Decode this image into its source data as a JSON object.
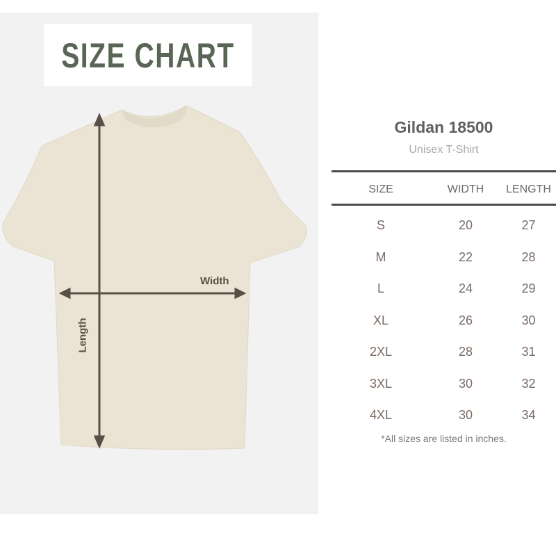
{
  "title": "SIZE CHART",
  "diagram": {
    "width_label": "Width",
    "length_label": "Length",
    "shirt_color": "#ebe4d4",
    "arrow_color": "#5a4e46"
  },
  "product": {
    "name": "Gildan 18500",
    "type": "Unisex T-Shirt"
  },
  "table": {
    "headers": [
      "SIZE",
      "WIDTH",
      "LENGTH"
    ],
    "rows": [
      [
        "S",
        "20",
        "27"
      ],
      [
        "M",
        "22",
        "28"
      ],
      [
        "L",
        "24",
        "29"
      ],
      [
        "XL",
        "26",
        "30"
      ],
      [
        "2XL",
        "28",
        "31"
      ],
      [
        "3XL",
        "30",
        "32"
      ],
      [
        "4XL",
        "30",
        "34"
      ]
    ]
  },
  "note": "*All sizes are listed in inches."
}
